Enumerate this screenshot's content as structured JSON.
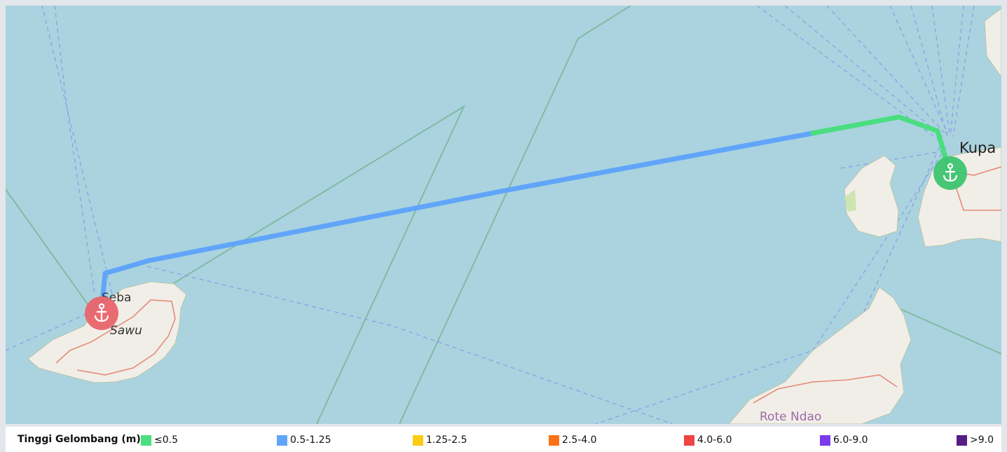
{
  "map": {
    "labels": {
      "seba": "Seba",
      "sawu": "Sawu",
      "kupang": "Kupa",
      "rote": "Rote Ndao"
    },
    "origin_port": {
      "icon": "anchor-icon",
      "color": "#e9646c"
    },
    "destination_port": {
      "icon": "anchor-icon",
      "color": "#3dc46f"
    },
    "route": {
      "segments": [
        {
          "category": "0.5-1.25",
          "color": "#60a5fa"
        },
        {
          "category": "≤0.5",
          "color": "#4ade80"
        }
      ]
    },
    "colors": {
      "sea": "#aad3df",
      "land": "#f1eee8",
      "boundary": "#7bb59a",
      "ferry": "#8a9ae6",
      "road": "#e58a78"
    }
  },
  "legend": {
    "title": "Tinggi Gelombang (m):",
    "items": [
      {
        "label": "≤0.5",
        "color": "#4ade80"
      },
      {
        "label": "0.5-1.25",
        "color": "#60a5fa"
      },
      {
        "label": "1.25-2.5",
        "color": "#facc15"
      },
      {
        "label": "2.5-4.0",
        "color": "#f97316"
      },
      {
        "label": "4.0-6.0",
        "color": "#ef4444"
      },
      {
        "label": "6.0-9.0",
        "color": "#7c3aed"
      },
      {
        "label": ">9.0",
        "color": "#581c87"
      }
    ]
  }
}
